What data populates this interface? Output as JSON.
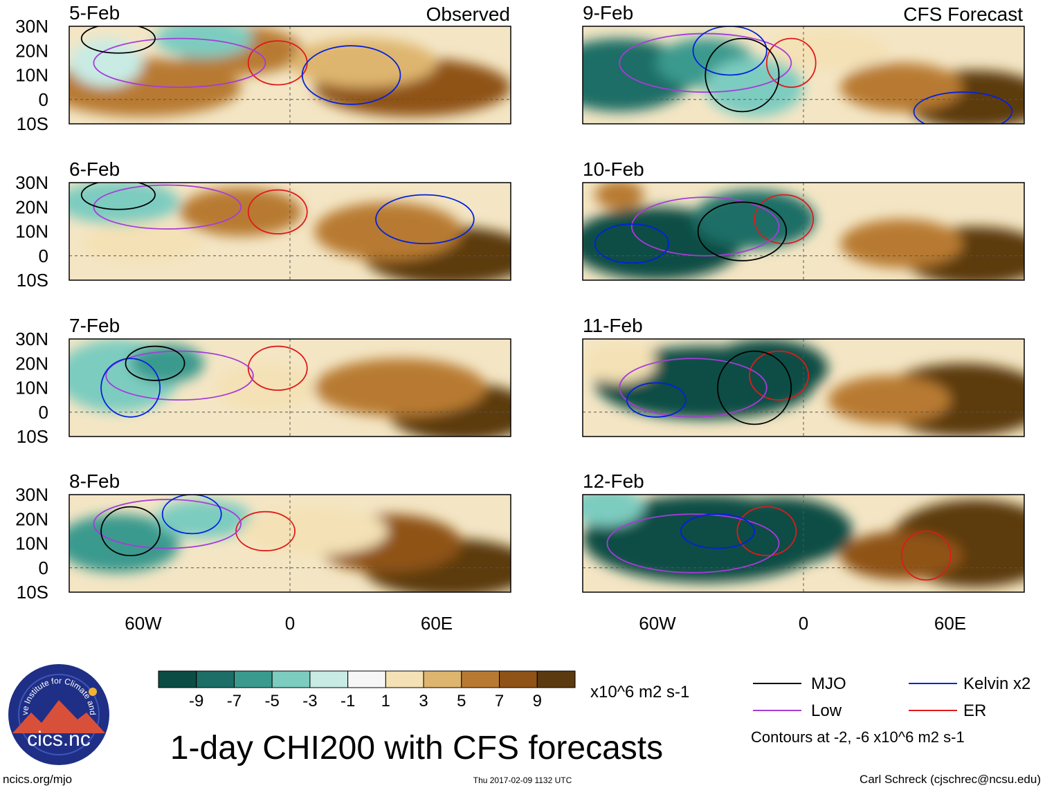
{
  "chart_data": {
    "type": "heatmap",
    "title": "1-day CHI200 with CFS forecasts",
    "variable": "CHI200",
    "units": "x10^6 m2 s-1",
    "observed_label": "Observed",
    "forecast_label": "CFS Forecast",
    "lat_ticks": [
      "30N",
      "20N",
      "10N",
      "0",
      "10S"
    ],
    "lon_ticks": [
      "60W",
      "0",
      "60E"
    ],
    "lat_range": [
      -10,
      30
    ],
    "lon_range": [
      -90,
      90
    ],
    "panels": [
      {
        "date": "5-Feb",
        "kind": "observed"
      },
      {
        "date": "6-Feb",
        "kind": "observed"
      },
      {
        "date": "7-Feb",
        "kind": "observed"
      },
      {
        "date": "8-Feb",
        "kind": "observed"
      },
      {
        "date": "9-Feb",
        "kind": "forecast"
      },
      {
        "date": "10-Feb",
        "kind": "forecast"
      },
      {
        "date": "11-Feb",
        "kind": "forecast"
      },
      {
        "date": "12-Feb",
        "kind": "forecast"
      }
    ],
    "colorbar": {
      "ticks": [
        "-9",
        "-7",
        "-5",
        "-3",
        "-1",
        "1",
        "3",
        "5",
        "7",
        "9"
      ],
      "colors": [
        "#0b4d45",
        "#1c6e66",
        "#3a9a8e",
        "#7dccc0",
        "#c8ebe4",
        "#f6f6f6",
        "#f4e1b5",
        "#deb56e",
        "#b87a33",
        "#8f5217",
        "#5c3a10"
      ]
    },
    "contour_note": "Contours at -2, -6 x10^6 m2 s-1",
    "legend": [
      {
        "label": "MJO",
        "color": "#000000"
      },
      {
        "label": "Kelvin x2",
        "color": "#0022dd"
      },
      {
        "label": "Low",
        "color": "#a63bd9"
      },
      {
        "label": "ER",
        "color": "#e01a1a"
      }
    ]
  },
  "footer": {
    "website": "ncics.org/mjo",
    "timestamp": "Thu 2017-02-09 1132 UTC",
    "author": "Carl Schreck (cjschrec@ncsu.edu)",
    "logo_text": "cics.nc",
    "logo_ring_text": "Cooperative Institute for Climate and Satellites"
  }
}
